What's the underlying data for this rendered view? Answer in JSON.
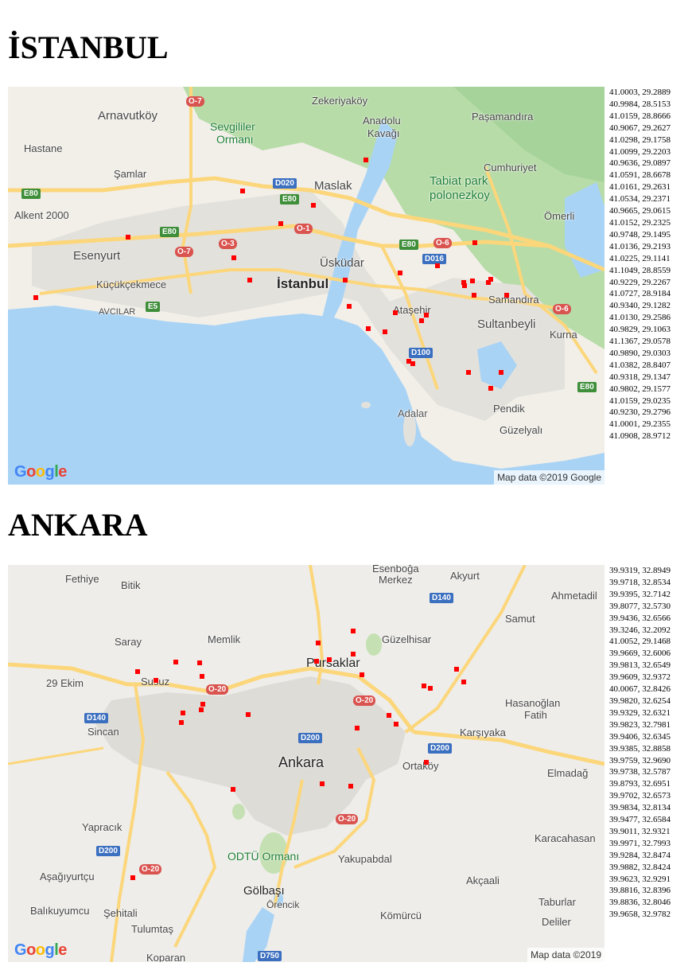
{
  "istanbul": {
    "title": "İSTANBUL",
    "attribution": "Map data ©2019 Google",
    "logo": [
      "G",
      "o",
      "o",
      "g",
      "l",
      "e"
    ],
    "places": [
      "Zekeriyaköy",
      "Arnavutköy",
      "Sevgililer",
      "Ormanı",
      "Anadolu",
      "Kavağı",
      "Paşamandıra",
      "Hastane",
      "Şamlar",
      "Cumhuriyet",
      "Tabiat park",
      "polonezkoy",
      "Maslak",
      "Alkent 2000",
      "Ömerli",
      "Esenyurt",
      "Üsküdar",
      "Küçükçekmece",
      "İstanbul",
      "Samandıra",
      "AVCILAR",
      "Ataşehir",
      "Sultanbeyli",
      "Kurna",
      "Pendik",
      "Adalar",
      "Güzelyalı"
    ],
    "shields": [
      "O-7",
      "D020",
      "E80",
      "E80",
      "O-1",
      "E80",
      "O-3",
      "O-7",
      "E80",
      "O-6",
      "D016",
      "E5",
      "O-6",
      "D100",
      "E80"
    ],
    "coords": [
      "41.0003, 29.2889",
      "40.9984, 28.5153",
      "41.0159, 28.8666",
      "40.9067, 29.2627",
      "41.0298, 29.1758",
      "41.0099, 29.2203",
      "40.9636, 29.0897",
      "41.0591, 28.6678",
      "41.0161, 29.2631",
      "41.0534, 29.2371",
      "40.9665, 29.0615",
      "41.0152, 29.2325",
      "40.9748, 29.1495",
      "41.0136, 29.2193",
      "41.0225, 29.1141",
      "41.1049, 28.8559",
      "40.9229, 29.2267",
      "41.0727, 28.9184",
      "40.9340, 29.1282",
      "41.0130, 29.2586",
      "40.9829, 29.1063",
      "41.1367, 29.0578",
      "40.9890, 29.0303",
      "41.0382, 28.8407",
      "40.9318, 29.1347",
      "40.9802, 29.1577",
      "41.0159, 29.0235",
      "40.9230, 29.2796",
      "41.0001, 29.2355",
      "41.0908, 28.9712"
    ]
  },
  "ankara": {
    "title": "ANKARA",
    "attribution": "Map data ©2019",
    "logo": [
      "G",
      "o",
      "o",
      "g",
      "l",
      "e"
    ],
    "places": [
      "Esenboğa",
      "Merkez",
      "Akyurt",
      "Fethiye",
      "Bitik",
      "Ahmetadil",
      "Samut",
      "Saray",
      "Memlik",
      "Güzelhisar",
      "Pursaklar",
      "29 Ekim",
      "Susuz",
      "Hasanoğlan",
      "Fatih",
      "Sincan",
      "Karşıyaka",
      "Ankara",
      "Ortaköy",
      "Elmadağ",
      "Yapracık",
      "ODTÜ Ormanı",
      "Yakupabdal",
      "Karacahasan",
      "Aşağıyurtçu",
      "Akçaali",
      "Gölbaşı",
      "Örencik",
      "Balıkuyumcu",
      "Şehitali",
      "Kömürcü",
      "Tulumtaş",
      "Taburlar",
      "Deliler",
      "Koparan"
    ],
    "shields": [
      "D140",
      "O-20",
      "O-20",
      "D140",
      "D200",
      "D200",
      "O-20",
      "D200",
      "O-20",
      "D750"
    ],
    "coords": [
      "39.9319, 32.8949",
      "39.9718, 32.8534",
      "39.9395, 32.7142",
      "39.8077, 32.5730",
      "39.9436, 32.6566",
      "39.3246, 32.2092",
      "41.0052, 29.1468",
      "39.9669, 32.6006",
      "39.9813, 32.6549",
      "39.9609, 32.9372",
      "40.0067, 32.8426",
      "39.9820, 32.6254",
      "39.9329, 32.6321",
      "39.9823, 32.7981",
      "39.9406, 32.6345",
      "39.9385, 32.8858",
      "39.9759, 32.9690",
      "39.9738, 32.5787",
      "39.8793, 32.6951",
      "39.9702, 32.6573",
      "39.9834, 32.8134",
      "39.9477, 32.6584",
      "39.9011, 32.9321",
      "39.9971, 32.7993",
      "39.9284, 32.8474",
      "39.9882, 32.8424",
      "39.9623, 32.9291",
      "39.8816, 32.8396",
      "39.8836, 32.8046",
      "39.9658, 32.9782"
    ]
  },
  "colors": {
    "marker": "#ff0000",
    "water": "#a9d3f5",
    "land": "#f2efe9",
    "park": "#b7dca8",
    "road": "#fcd67a"
  }
}
